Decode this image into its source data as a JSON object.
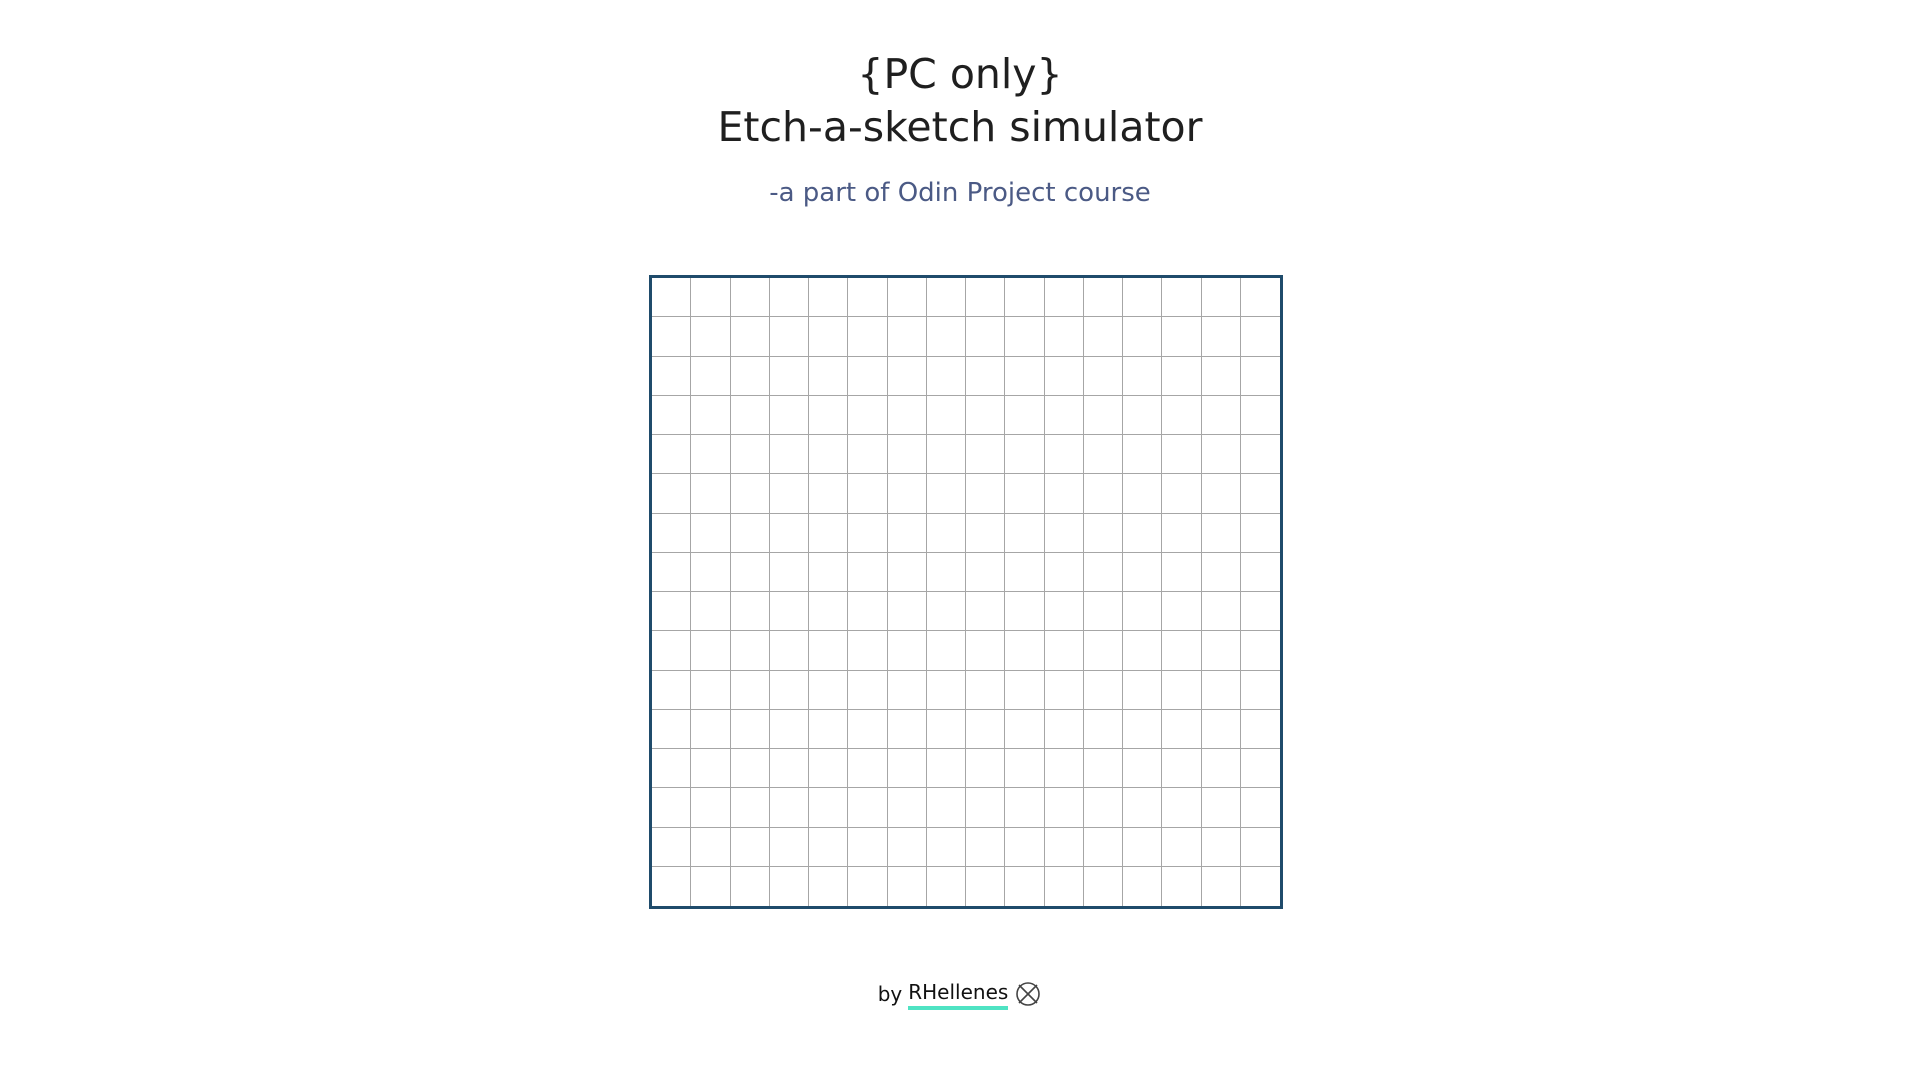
{
  "header": {
    "title_line1": "{PC only}",
    "title_line2": "Etch-a-sketch simulator",
    "subtitle": "-a part of Odin Project course"
  },
  "board": {
    "rows": 16,
    "columns": 16,
    "border_color": "#1f4b6b",
    "grid_line_color": "#a6a6a6",
    "cell_color": "#ffffff"
  },
  "footer": {
    "by_label": "by",
    "author_name": "RHellenes",
    "author_underline_color": "#4fe3c3",
    "icon": "github-logo-icon"
  }
}
